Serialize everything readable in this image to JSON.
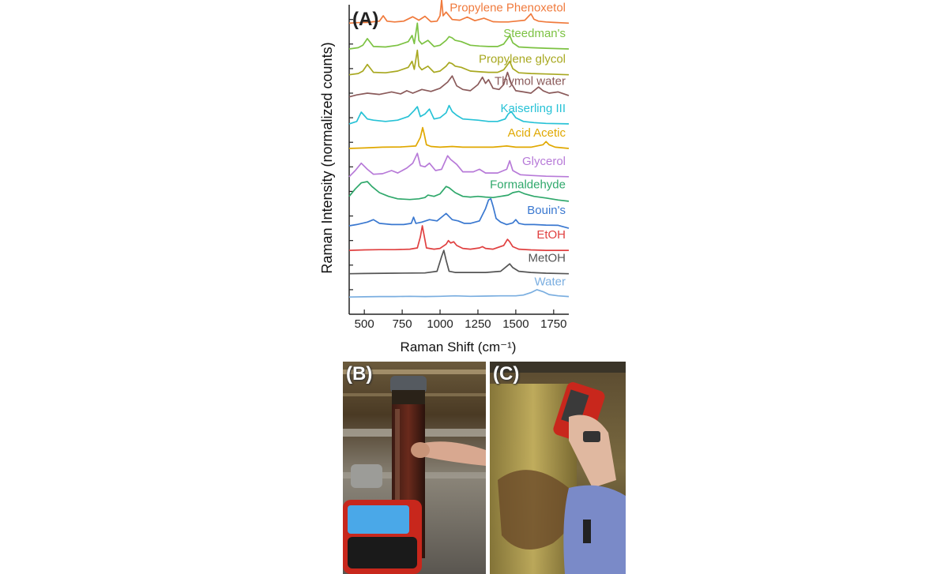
{
  "figure": {
    "panel_a_label": "(A)",
    "panel_b_label": "(B)",
    "panel_c_label": "(C)",
    "panel_b_photo": "raman-device-measuring-specimen-jar",
    "panel_c_photo": "handheld-raman-device-held-to-jar"
  },
  "chart_data": {
    "type": "line",
    "title": "",
    "xlabel": "Raman Shift (cm⁻¹)",
    "ylabel": "Raman Intensity (normalized counts)",
    "xlim": [
      400,
      1850
    ],
    "ylim": [
      0,
      12.6
    ],
    "xticks": [
      500,
      750,
      1000,
      1250,
      1500,
      1750
    ],
    "y_ticks_unlabeled": true,
    "grid": false,
    "legend": "labels at right end of each trace",
    "series": [
      {
        "name": "Propylene Phenoxetol",
        "color": "#f07a3c",
        "offset": 11.85,
        "x": [
          400,
          450,
          520,
          560,
          600,
          625,
          650,
          700,
          760,
          820,
          860,
          900,
          940,
          980,
          1000,
          1010,
          1020,
          1040,
          1080,
          1130,
          1180,
          1230,
          1290,
          1350,
          1400,
          1450,
          1500,
          1560,
          1600,
          1620,
          1650,
          1700,
          1750,
          1850
        ],
        "y": [
          0.0,
          0.02,
          0.03,
          0.06,
          0.08,
          0.3,
          0.08,
          0.05,
          0.08,
          0.26,
          0.12,
          0.28,
          0.06,
          0.08,
          0.3,
          0.95,
          0.3,
          0.45,
          0.15,
          0.12,
          0.25,
          0.1,
          0.2,
          0.06,
          0.05,
          0.05,
          0.08,
          0.12,
          0.38,
          0.16,
          0.08,
          0.05,
          0.03,
          0.0
        ]
      },
      {
        "name": "Steedman's",
        "color": "#7cc242",
        "offset": 10.8,
        "x": [
          400,
          460,
          490,
          520,
          560,
          640,
          720,
          790,
          815,
          830,
          850,
          860,
          880,
          920,
          960,
          1000,
          1040,
          1060,
          1080,
          1100,
          1140,
          1200,
          1260,
          1320,
          1380,
          1420,
          1450,
          1460,
          1480,
          1520,
          1600,
          1700,
          1850
        ],
        "y": [
          0.0,
          0.05,
          0.15,
          0.42,
          0.1,
          0.08,
          0.15,
          0.3,
          0.55,
          0.22,
          1.05,
          0.35,
          0.2,
          0.35,
          0.1,
          0.15,
          0.35,
          0.5,
          0.45,
          0.35,
          0.3,
          0.15,
          0.12,
          0.1,
          0.1,
          0.2,
          0.45,
          0.55,
          0.25,
          0.08,
          0.05,
          0.03,
          0.0
        ]
      },
      {
        "name": "Propylene glycol",
        "color": "#a8a820",
        "offset": 9.75,
        "x": [
          400,
          460,
          490,
          520,
          560,
          640,
          720,
          790,
          815,
          830,
          850,
          860,
          880,
          920,
          960,
          1000,
          1040,
          1060,
          1080,
          1100,
          1140,
          1200,
          1260,
          1320,
          1380,
          1420,
          1450,
          1460,
          1480,
          1520,
          1600,
          1700,
          1850
        ],
        "y": [
          0.0,
          0.05,
          0.15,
          0.42,
          0.1,
          0.08,
          0.15,
          0.3,
          0.55,
          0.22,
          1.0,
          0.35,
          0.2,
          0.35,
          0.1,
          0.15,
          0.35,
          0.5,
          0.45,
          0.35,
          0.3,
          0.15,
          0.12,
          0.1,
          0.1,
          0.2,
          0.45,
          0.55,
          0.25,
          0.08,
          0.05,
          0.03,
          0.0
        ]
      },
      {
        "name": "Thymol water",
        "color": "#8a5a5a",
        "offset": 8.85,
        "x": [
          400,
          450,
          520,
          600,
          680,
          740,
          780,
          820,
          880,
          940,
          1000,
          1050,
          1080,
          1110,
          1150,
          1200,
          1250,
          1280,
          1300,
          1320,
          1350,
          1390,
          1420,
          1445,
          1470,
          1500,
          1550,
          1600,
          1650,
          1680,
          1720,
          1780,
          1850
        ],
        "y": [
          0.0,
          0.08,
          0.15,
          0.1,
          0.2,
          0.12,
          0.25,
          0.15,
          0.3,
          0.22,
          0.35,
          0.6,
          0.85,
          0.45,
          0.3,
          0.25,
          0.5,
          0.8,
          0.55,
          0.7,
          0.35,
          0.3,
          0.5,
          1.0,
          0.55,
          0.25,
          0.2,
          0.15,
          0.4,
          0.25,
          0.15,
          0.2,
          0.05
        ]
      },
      {
        "name": "Kaiserling III",
        "color": "#27c2d6",
        "offset": 7.75,
        "x": [
          400,
          450,
          480,
          520,
          560,
          640,
          720,
          790,
          830,
          850,
          870,
          900,
          930,
          960,
          1000,
          1040,
          1060,
          1080,
          1110,
          1150,
          1250,
          1320,
          1380,
          1430,
          1450,
          1470,
          1500,
          1550,
          1620,
          1700,
          1850
        ],
        "y": [
          0.0,
          0.1,
          0.48,
          0.2,
          0.15,
          0.1,
          0.15,
          0.3,
          0.55,
          0.7,
          0.3,
          0.4,
          0.6,
          0.2,
          0.25,
          0.45,
          0.75,
          0.5,
          0.35,
          0.2,
          0.15,
          0.1,
          0.1,
          0.2,
          0.4,
          0.5,
          0.25,
          0.1,
          0.05,
          0.02,
          0.0
        ]
      },
      {
        "name": "Acid Acetic",
        "color": "#e0a800",
        "offset": 6.75,
        "x": [
          400,
          500,
          620,
          740,
          840,
          870,
          885,
          895,
          910,
          940,
          1000,
          1080,
          1150,
          1250,
          1350,
          1440,
          1500,
          1600,
          1680,
          1700,
          1720,
          1760,
          1850
        ],
        "y": [
          0.0,
          0.02,
          0.05,
          0.06,
          0.1,
          0.45,
          0.85,
          0.6,
          0.15,
          0.08,
          0.05,
          0.08,
          0.05,
          0.05,
          0.05,
          0.1,
          0.05,
          0.05,
          0.15,
          0.28,
          0.15,
          0.05,
          0.0
        ]
      },
      {
        "name": "Glycerol",
        "color": "#b77ad8",
        "offset": 5.6,
        "x": [
          400,
          440,
          480,
          520,
          560,
          620,
          680,
          720,
          780,
          820,
          850,
          870,
          900,
          930,
          970,
          1010,
          1050,
          1070,
          1110,
          1150,
          1220,
          1260,
          1300,
          1380,
          1440,
          1460,
          1480,
          1530,
          1600,
          1700,
          1850
        ],
        "y": [
          0.0,
          0.25,
          0.55,
          0.3,
          0.1,
          0.12,
          0.25,
          0.15,
          0.35,
          0.55,
          0.95,
          0.45,
          0.4,
          0.55,
          0.25,
          0.3,
          0.85,
          0.7,
          0.5,
          0.2,
          0.2,
          0.3,
          0.15,
          0.15,
          0.3,
          0.65,
          0.25,
          0.08,
          0.05,
          0.02,
          0.0
        ]
      },
      {
        "name": "Formaldehyde",
        "color": "#2fa86b",
        "offset": 4.65,
        "x": [
          400,
          440,
          480,
          520,
          550,
          600,
          660,
          720,
          800,
          860,
          900,
          920,
          960,
          1000,
          1040,
          1060,
          1100,
          1150,
          1200,
          1250,
          1300,
          1350,
          1400,
          1450,
          1480,
          1520,
          1560,
          1620,
          1700,
          1780,
          1850
        ],
        "y": [
          0.15,
          0.45,
          0.7,
          0.75,
          0.55,
          0.3,
          0.15,
          0.05,
          0.02,
          0.05,
          0.1,
          0.2,
          0.15,
          0.25,
          0.55,
          0.5,
          0.3,
          0.15,
          0.12,
          0.15,
          0.12,
          0.1,
          0.15,
          0.2,
          0.3,
          0.35,
          0.25,
          0.15,
          0.08,
          0.0,
          -0.05
        ]
      },
      {
        "name": "Bouin's",
        "color": "#3a78d0",
        "offset": 3.6,
        "x": [
          400,
          450,
          520,
          560,
          600,
          680,
          760,
          810,
          825,
          840,
          880,
          930,
          980,
          1040,
          1080,
          1120,
          1160,
          1200,
          1260,
          1300,
          1320,
          1335,
          1350,
          1370,
          1400,
          1440,
          1480,
          1500,
          1520,
          1560,
          1620,
          1700,
          1780,
          1850
        ],
        "y": [
          0.0,
          0.05,
          0.15,
          0.25,
          0.1,
          0.05,
          0.05,
          0.1,
          0.35,
          0.1,
          0.15,
          0.25,
          0.2,
          0.5,
          0.25,
          0.2,
          0.1,
          0.1,
          0.2,
          0.7,
          1.05,
          1.1,
          0.8,
          0.3,
          0.15,
          0.05,
          0.12,
          0.25,
          0.1,
          0.05,
          0.05,
          0.03,
          0.02,
          -0.1
        ]
      },
      {
        "name": "EtOH",
        "color": "#e04040",
        "offset": 2.6,
        "x": [
          400,
          500,
          600,
          700,
          800,
          850,
          870,
          883,
          895,
          910,
          960,
          1000,
          1040,
          1055,
          1070,
          1090,
          1110,
          1150,
          1200,
          1260,
          1280,
          1300,
          1350,
          1420,
          1445,
          1460,
          1480,
          1520,
          1600,
          1700,
          1850
        ],
        "y": [
          0.0,
          0.02,
          0.03,
          0.03,
          0.05,
          0.1,
          0.55,
          1.0,
          0.6,
          0.1,
          0.05,
          0.08,
          0.25,
          0.4,
          0.3,
          0.35,
          0.2,
          0.08,
          0.05,
          0.1,
          0.15,
          0.08,
          0.05,
          0.2,
          0.45,
          0.35,
          0.15,
          0.05,
          0.02,
          0.0,
          0.0
        ]
      },
      {
        "name": "MetOH",
        "color": "#555555",
        "offset": 1.65,
        "x": [
          400,
          500,
          700,
          900,
          980,
          1010,
          1025,
          1040,
          1060,
          1100,
          1200,
          1300,
          1400,
          1440,
          1460,
          1480,
          1520,
          1600,
          1700,
          1850
        ],
        "y": [
          0.0,
          0.01,
          0.02,
          0.03,
          0.1,
          0.7,
          0.95,
          0.55,
          0.1,
          0.05,
          0.05,
          0.05,
          0.1,
          0.3,
          0.4,
          0.25,
          0.1,
          0.05,
          0.02,
          0.0
        ]
      },
      {
        "name": "Water",
        "color": "#7aaee0",
        "offset": 0.7,
        "x": [
          400,
          500,
          600,
          700,
          800,
          900,
          1000,
          1100,
          1200,
          1300,
          1400,
          1500,
          1550,
          1600,
          1640,
          1680,
          1720,
          1780,
          1850
        ],
        "y": [
          0.0,
          0.01,
          0.02,
          0.02,
          0.03,
          0.02,
          0.03,
          0.05,
          0.03,
          0.04,
          0.05,
          0.05,
          0.08,
          0.18,
          0.3,
          0.22,
          0.1,
          0.05,
          0.02
        ]
      }
    ]
  }
}
